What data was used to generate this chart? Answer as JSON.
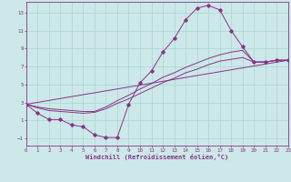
{
  "bg_color": "#cce8e8",
  "grid_color": "#aad4d4",
  "line_color": "#883388",
  "marker_color": "#883388",
  "curve1_x": [
    0,
    1,
    2,
    3,
    4,
    5,
    6,
    7,
    8,
    9,
    10,
    11,
    12,
    13,
    14,
    15,
    16,
    17,
    18,
    19,
    20,
    21,
    22,
    23
  ],
  "curve1_y": [
    2.8,
    1.8,
    1.1,
    1.1,
    0.5,
    0.3,
    -0.6,
    -0.9,
    -0.9,
    2.8,
    5.2,
    6.5,
    8.6,
    10.1,
    12.2,
    13.5,
    13.8,
    13.3,
    11.0,
    9.2,
    7.5,
    7.5,
    7.7,
    7.7
  ],
  "line2_x": [
    0,
    23
  ],
  "line2_y": [
    2.8,
    7.7
  ],
  "line3_x": [
    0,
    23
  ],
  "line3_y": [
    2.8,
    7.7
  ],
  "curve3_x": [
    0,
    1,
    2,
    3,
    4,
    5,
    6,
    7,
    8,
    9,
    10,
    11,
    12,
    13,
    14,
    15,
    16,
    17,
    18,
    19,
    20,
    21,
    22,
    23
  ],
  "curve3_y": [
    2.8,
    2.5,
    2.3,
    2.2,
    2.1,
    2.0,
    2.0,
    2.5,
    3.2,
    3.8,
    4.5,
    5.1,
    5.8,
    6.3,
    6.9,
    7.4,
    7.9,
    8.3,
    8.6,
    8.8,
    7.5,
    7.5,
    7.7,
    7.7
  ],
  "curve4_x": [
    0,
    1,
    2,
    3,
    4,
    5,
    6,
    7,
    8,
    9,
    10,
    11,
    12,
    13,
    14,
    15,
    16,
    17,
    18,
    19,
    20,
    21,
    22,
    23
  ],
  "curve4_y": [
    2.8,
    2.4,
    2.1,
    2.0,
    1.9,
    1.8,
    1.9,
    2.3,
    2.9,
    3.4,
    4.0,
    4.6,
    5.2,
    5.7,
    6.3,
    6.7,
    7.2,
    7.6,
    7.8,
    8.0,
    7.5,
    7.5,
    7.7,
    7.7
  ],
  "xlim": [
    0,
    23
  ],
  "ylim": [
    -1.8,
    14.2
  ],
  "xticks": [
    0,
    1,
    2,
    3,
    4,
    5,
    6,
    7,
    8,
    9,
    10,
    11,
    12,
    13,
    14,
    15,
    16,
    17,
    18,
    19,
    20,
    21,
    22,
    23
  ],
  "yticks": [
    -1,
    1,
    3,
    5,
    7,
    9,
    11,
    13
  ],
  "xlabel": "Windchill (Refroidissement éolien,°C)"
}
